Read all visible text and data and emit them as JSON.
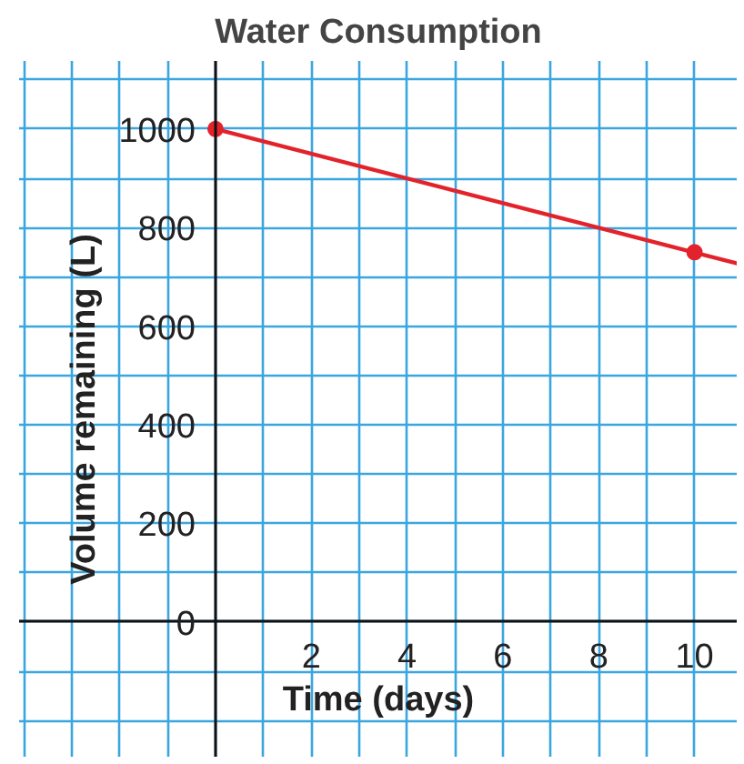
{
  "chart_data": {
    "type": "line",
    "title": "Water Consumption",
    "xlabel": "Time (days)",
    "ylabel": "Volume remaining (L)",
    "xlim": [
      -4.1,
      10.9
    ],
    "ylim": [
      -275,
      1138
    ],
    "xticks": [
      2,
      4,
      6,
      8,
      10
    ],
    "yticks": [
      0,
      200,
      400,
      600,
      800,
      1000
    ],
    "grid": true,
    "series": [
      {
        "color": "#e3232b",
        "x": [
          0,
          10.9
        ],
        "values": [
          1000,
          727
        ],
        "marker": "none"
      },
      {
        "type": "scatter",
        "color": "#e3232b",
        "x": [
          0,
          10
        ],
        "values": [
          1000,
          750
        ],
        "marker": "circle"
      }
    ]
  }
}
